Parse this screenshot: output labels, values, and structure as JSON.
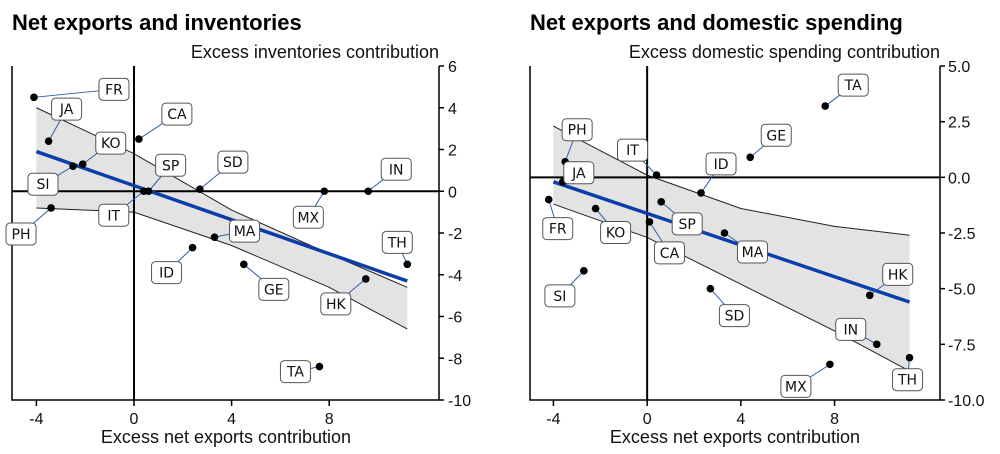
{
  "chart_data": [
    {
      "type": "scatter",
      "title": "Net exports and inventories",
      "ylabel": "Excess inventories contribution",
      "xlabel": "Excess net exports contribution",
      "xlim": [
        -5,
        12.5
      ],
      "ylim": [
        -10,
        6
      ],
      "xticks": [
        -4,
        0,
        4,
        8
      ],
      "yticks": [
        6,
        4,
        2,
        0,
        -2,
        -4,
        -6,
        -8,
        -10
      ],
      "ytick_labels": [
        "6",
        "4",
        "2",
        "0",
        "-2",
        "-4",
        "-6",
        "-8",
        "-10"
      ],
      "points": [
        {
          "label": "FR",
          "x": -4.1,
          "y": 4.5
        },
        {
          "label": "JA",
          "x": -3.5,
          "y": 2.4
        },
        {
          "label": "KO",
          "x": -2.1,
          "y": 1.3
        },
        {
          "label": "SI",
          "x": -2.5,
          "y": 1.2
        },
        {
          "label": "PH",
          "x": -3.4,
          "y": -0.8
        },
        {
          "label": "CA",
          "x": 0.2,
          "y": 2.5
        },
        {
          "label": "SP",
          "x": 0.6,
          "y": 0.0
        },
        {
          "label": "IT",
          "x": 0.4,
          "y": 0.0
        },
        {
          "label": "SD",
          "x": 2.7,
          "y": 0.1
        },
        {
          "label": "IN",
          "x": 9.6,
          "y": 0.0
        },
        {
          "label": "MX",
          "x": 7.8,
          "y": 0.0
        },
        {
          "label": "MA",
          "x": 3.3,
          "y": -2.2
        },
        {
          "label": "ID",
          "x": 2.4,
          "y": -2.7
        },
        {
          "label": "GE",
          "x": 4.5,
          "y": -3.5
        },
        {
          "label": "TH",
          "x": 11.2,
          "y": -3.5
        },
        {
          "label": "HK",
          "x": 9.5,
          "y": -4.2
        },
        {
          "label": "TA",
          "x": 7.6,
          "y": -8.4
        }
      ],
      "fit": {
        "x": [
          -4,
          11.2
        ],
        "y": [
          1.9,
          -4.3
        ]
      },
      "band_upper": [
        [
          -4,
          4.0
        ],
        [
          0,
          1.8
        ],
        [
          4,
          -0.9
        ],
        [
          8,
          -3.0
        ],
        [
          11.2,
          -4.6
        ]
      ],
      "band_lower": [
        [
          -4,
          -0.8
        ],
        [
          0,
          -1.0
        ],
        [
          4,
          -2.6
        ],
        [
          8,
          -4.6
        ],
        [
          11.2,
          -6.6
        ]
      ]
    },
    {
      "type": "scatter",
      "title": "Net exports and domestic spending",
      "ylabel": "Excess domestic spending contribution",
      "xlabel": "Excess net exports contribution",
      "xlim": [
        -5,
        12.5
      ],
      "ylim": [
        -10,
        5
      ],
      "xticks": [
        -4,
        0,
        4,
        8
      ],
      "yticks": [
        5,
        2.5,
        0,
        -2.5,
        -5,
        -7.5,
        -10
      ],
      "ytick_labels": [
        "5.0",
        "2.5",
        "0.0",
        "-2.5",
        "-5.0",
        "-7.5",
        "-10.0"
      ],
      "points": [
        {
          "label": "TA",
          "x": 7.6,
          "y": 3.2
        },
        {
          "label": "GE",
          "x": 4.4,
          "y": 0.9
        },
        {
          "label": "PH",
          "x": -3.5,
          "y": 0.7
        },
        {
          "label": "IT",
          "x": 0.4,
          "y": 0.1
        },
        {
          "label": "JA",
          "x": -3.6,
          "y": -0.2
        },
        {
          "label": "ID",
          "x": 2.3,
          "y": -0.7
        },
        {
          "label": "FR",
          "x": -4.2,
          "y": -1.0
        },
        {
          "label": "KO",
          "x": -2.2,
          "y": -1.4
        },
        {
          "label": "SP",
          "x": 0.6,
          "y": -1.1
        },
        {
          "label": "CA",
          "x": 0.1,
          "y": -2.0
        },
        {
          "label": "MA",
          "x": 3.3,
          "y": -2.5
        },
        {
          "label": "SI",
          "x": -2.7,
          "y": -4.2
        },
        {
          "label": "SD",
          "x": 2.7,
          "y": -5.0
        },
        {
          "label": "HK",
          "x": 9.5,
          "y": -5.3
        },
        {
          "label": "IN",
          "x": 9.8,
          "y": -7.5
        },
        {
          "label": "TH",
          "x": 11.2,
          "y": -8.1
        },
        {
          "label": "MX",
          "x": 7.8,
          "y": -8.4
        }
      ],
      "fit": {
        "x": [
          -4,
          11.2
        ],
        "y": [
          -0.2,
          -5.6
        ]
      },
      "band_upper": [
        [
          -4,
          2.3
        ],
        [
          0,
          0.1
        ],
        [
          4,
          -1.4
        ],
        [
          8,
          -2.2
        ],
        [
          11.2,
          -2.6
        ]
      ],
      "band_lower": [
        [
          -4,
          -1.2
        ],
        [
          0,
          -2.7
        ],
        [
          4,
          -4.8
        ],
        [
          8,
          -6.9
        ],
        [
          11.2,
          -8.7
        ]
      ]
    }
  ]
}
